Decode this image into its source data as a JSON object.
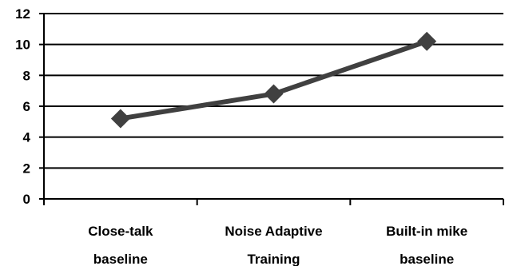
{
  "chart_data": {
    "type": "line",
    "categories": [
      [
        "Close-talk",
        "baseline"
      ],
      [
        "Noise Adaptive",
        "Training"
      ],
      [
        "Built-in mike",
        "baseline"
      ]
    ],
    "series": [
      {
        "values": [
          5.2,
          6.8,
          10.2
        ]
      }
    ],
    "yticks": [
      "0",
      "2",
      "4",
      "6",
      "8",
      "10",
      "12"
    ],
    "ylim": [
      0,
      12
    ],
    "grid": true,
    "legend": "none",
    "colors": {
      "line": "#404040",
      "marker": "#404040",
      "grid": "#000000",
      "axis": "#000000"
    }
  }
}
